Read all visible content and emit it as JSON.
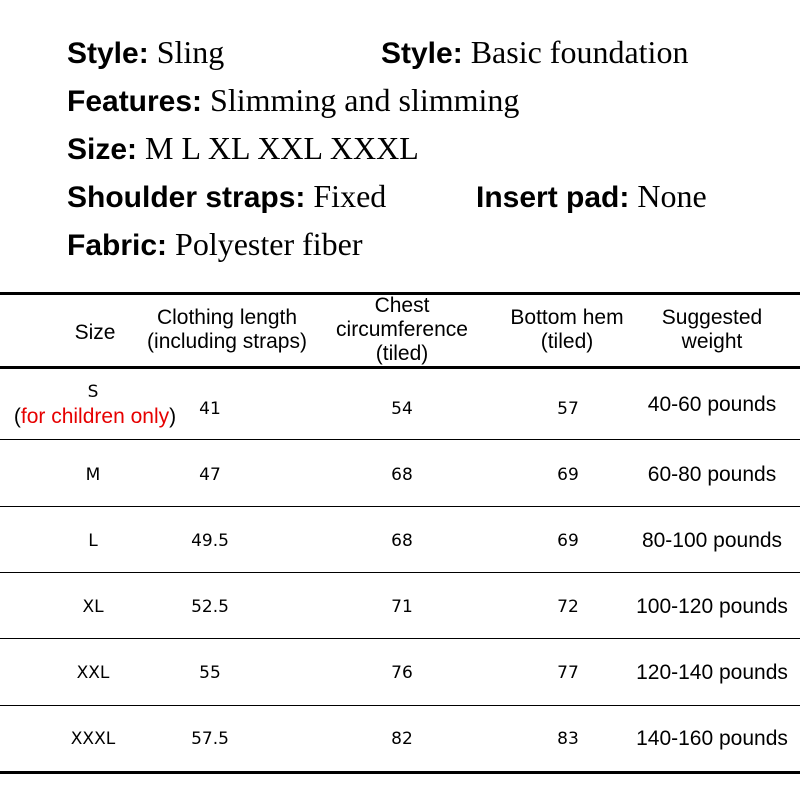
{
  "specs": {
    "style1": {
      "label": "Style:",
      "value": "Sling"
    },
    "style2": {
      "label": "Style:",
      "value": "Basic foundation"
    },
    "features": {
      "label": "Features:",
      "value": "Slimming and slimming"
    },
    "size": {
      "label": "Size:",
      "value": "M L XL XXL XXXL"
    },
    "straps": {
      "label": "Shoulder straps:",
      "value": "Fixed"
    },
    "pad": {
      "label": "Insert pad:",
      "value": "None"
    },
    "fabric": {
      "label": "Fabric:",
      "value": "Polyester fiber"
    }
  },
  "table": {
    "headers": {
      "size": "Size",
      "length_1": "Clothing length",
      "length_2": "(including straps)",
      "chest_1": "Chest",
      "chest_2": "circumference",
      "chest_3": "(tiled)",
      "hem_1": "Bottom hem",
      "hem_2": "(tiled)",
      "weight_1": "Suggested",
      "weight_2": "weight"
    },
    "s_note": {
      "open": "(",
      "text": "for children only",
      "close": ")",
      "color": "#e60000"
    },
    "rows": [
      {
        "size": "S",
        "length": "41",
        "chest": "54",
        "hem": "57",
        "weight": "40-60 pounds"
      },
      {
        "size": "M",
        "length": "47",
        "chest": "68",
        "hem": "69",
        "weight": "60-80 pounds"
      },
      {
        "size": "L",
        "length": "49.5",
        "chest": "68",
        "hem": "69",
        "weight": "80-100 pounds"
      },
      {
        "size": "XL",
        "length": "52.5",
        "chest": "71",
        "hem": "72",
        "weight": "100-120 pounds"
      },
      {
        "size": "XXL",
        "length": "55",
        "chest": "76",
        "hem": "77",
        "weight": "120-140 pounds"
      },
      {
        "size": "XXXL",
        "length": "57.5",
        "chest": "82",
        "hem": "83",
        "weight": "140-160 pounds"
      }
    ]
  }
}
